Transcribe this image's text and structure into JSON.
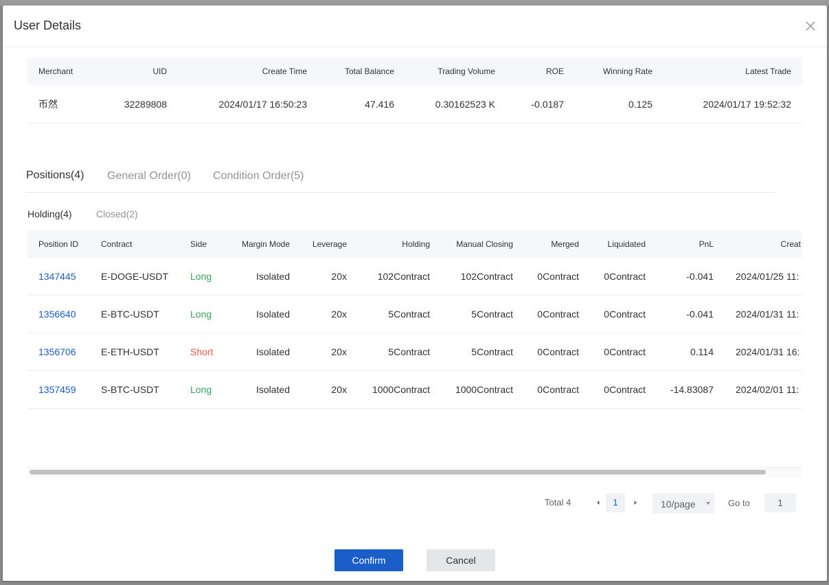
{
  "dialog": {
    "title": "User Details",
    "close_icon": "close-icon"
  },
  "summary": {
    "columns": [
      "Merchant",
      "UID",
      "Create Time",
      "Total Balance",
      "Trading Volume",
      "ROE",
      "Winning Rate",
      "Latest Trade"
    ],
    "row": [
      "币然",
      "32289808",
      "2024/01/17 16:50:23",
      "47.416",
      "0.30162523 K",
      "-0.0187",
      "0.125",
      "2024/01/17 19:52:32"
    ]
  },
  "tabs": [
    {
      "label": "Positions(4)",
      "active": true
    },
    {
      "label": "General Order(0)",
      "active": false
    },
    {
      "label": "Condition Order(5)",
      "active": false
    }
  ],
  "subtabs": [
    {
      "label": "Holding(4)",
      "active": true
    },
    {
      "label": "Closed(2)",
      "active": false
    }
  ],
  "positions": {
    "columns": [
      "Position ID",
      "Contract",
      "Side",
      "Margin Mode",
      "Leverage",
      "Holding",
      "Manual Closing",
      "Merged",
      "Liquidated",
      "PnL",
      "Creat"
    ],
    "rows": [
      {
        "id": "1347445",
        "contract": "E-DOGE-USDT",
        "side": "Long",
        "margin_mode": "Isolated",
        "leverage": "20x",
        "holding": "102Contract",
        "manual_closing": "102Contract",
        "merged": "0Contract",
        "liquidated": "0Contract",
        "pnl": "-0.041",
        "create_time": "2024/01/25 11:"
      },
      {
        "id": "1356640",
        "contract": "E-BTC-USDT",
        "side": "Long",
        "margin_mode": "Isolated",
        "leverage": "20x",
        "holding": "5Contract",
        "manual_closing": "5Contract",
        "merged": "0Contract",
        "liquidated": "0Contract",
        "pnl": "-0.041",
        "create_time": "2024/01/31 11:"
      },
      {
        "id": "1356706",
        "contract": "E-ETH-USDT",
        "side": "Short",
        "margin_mode": "Isolated",
        "leverage": "20x",
        "holding": "5Contract",
        "manual_closing": "5Contract",
        "merged": "0Contract",
        "liquidated": "0Contract",
        "pnl": "0.114",
        "create_time": "2024/01/31 16:"
      },
      {
        "id": "1357459",
        "contract": "S-BTC-USDT",
        "side": "Long",
        "margin_mode": "Isolated",
        "leverage": "20x",
        "holding": "1000Contract",
        "manual_closing": "1000Contract",
        "merged": "0Contract",
        "liquidated": "0Contract",
        "pnl": "-14.83087",
        "create_time": "2024/02/01 11:"
      }
    ]
  },
  "colors": {
    "primary": "#1b5ec9",
    "long": "#34a853",
    "short": "#f0594e"
  },
  "pagination": {
    "total_label": "Total 4",
    "current_page": "1",
    "page_size": "10/page",
    "goto_label": "Go to",
    "goto_value": "1"
  },
  "footer": {
    "confirm_label": "Confirm",
    "cancel_label": "Cancel"
  }
}
